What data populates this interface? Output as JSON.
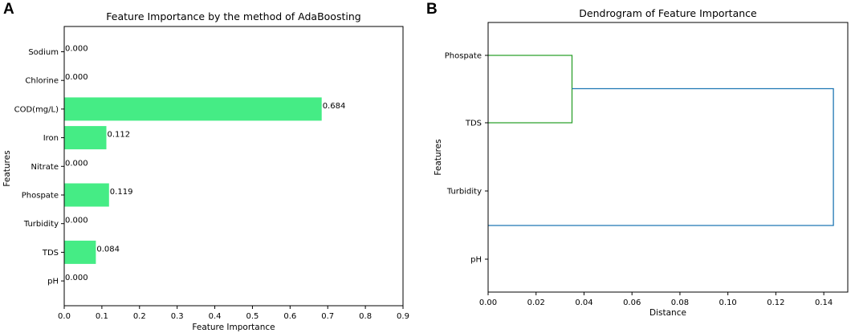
{
  "panel_labels": {
    "a": "A",
    "b": "B"
  },
  "colors": {
    "bar": "#45ec85",
    "cluster_green": "#2ca02c",
    "cluster_blue": "#1f77b4",
    "axis": "#000000"
  },
  "chart_data": [
    {
      "type": "bar",
      "orientation": "horizontal",
      "title": "Feature Importance by the method of AdaBoosting",
      "xlabel": "Feature Importance",
      "ylabel": "Features",
      "categories": [
        "Sodium",
        "Chlorine",
        "COD(mg/L)",
        "Iron",
        "Nitrate",
        "Phospate",
        "Turbidity",
        "TDS",
        "pH"
      ],
      "values": [
        0.0,
        0.0,
        0.684,
        0.112,
        0.0,
        0.119,
        0.0,
        0.084,
        0.0
      ],
      "data_labels": [
        "0.000",
        "0.000",
        "0.684",
        "0.112",
        "0.000",
        "0.119",
        "0.000",
        "0.084",
        "0.000"
      ],
      "xlim": [
        0,
        0.9
      ],
      "xticks": [
        "0.0",
        "0.1",
        "0.2",
        "0.3",
        "0.4",
        "0.5",
        "0.6",
        "0.7",
        "0.8",
        "0.9"
      ],
      "grid": false
    },
    {
      "type": "dendrogram",
      "orientation": "horizontal",
      "title": "Dendrogram of Feature Importance",
      "xlabel": "Distance",
      "ylabel": "Features",
      "leaves": [
        "Phospate",
        "TDS",
        "Turbidity",
        "pH"
      ],
      "links": [
        {
          "left": "Phospate",
          "right": "TDS",
          "distance": 0.035,
          "color": "green"
        },
        {
          "left": "Phospate+TDS",
          "right": "Turbidity+pH",
          "distance": 0.144,
          "color": "blue"
        },
        {
          "left": "Turbidity",
          "right": "pH",
          "distance": 0.0,
          "color": "blue"
        }
      ],
      "xlim": [
        0,
        0.15
      ],
      "xticks": [
        "0.00",
        "0.02",
        "0.04",
        "0.06",
        "0.08",
        "0.10",
        "0.12",
        "0.14"
      ],
      "grid": false
    }
  ]
}
